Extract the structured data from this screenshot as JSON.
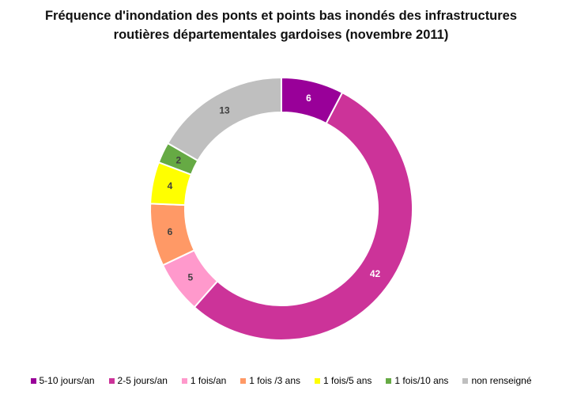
{
  "chart_data": {
    "type": "pie",
    "title_lines": [
      "Fréquence d'inondation des ponts et points bas inondés des infrastructures",
      "routières départementales gardoises (novembre 2011)"
    ],
    "donut": true,
    "legend_position": "bottom",
    "slices": [
      {
        "label": "5-10 jours/an",
        "value": 6,
        "color": "#990099",
        "label_color": "#ffffff"
      },
      {
        "label": "2-5 jours/an",
        "value": 42,
        "color": "#cc3399",
        "label_color": "#ffffff"
      },
      {
        "label": "1 fois/an",
        "value": 5,
        "color": "#ff99cc",
        "label_color": "#404040"
      },
      {
        "label": "1 fois /3 ans",
        "value": 6,
        "color": "#ff9966",
        "label_color": "#404040"
      },
      {
        "label": "1 fois/5 ans",
        "value": 4,
        "color": "#ffff00",
        "label_color": "#404040"
      },
      {
        "label": "1 fois/10 ans",
        "value": 2,
        "color": "#66aa44",
        "label_color": "#404040"
      },
      {
        "label": "non renseigné",
        "value": 13,
        "color": "#bfbfbf",
        "label_color": "#404040"
      }
    ]
  }
}
